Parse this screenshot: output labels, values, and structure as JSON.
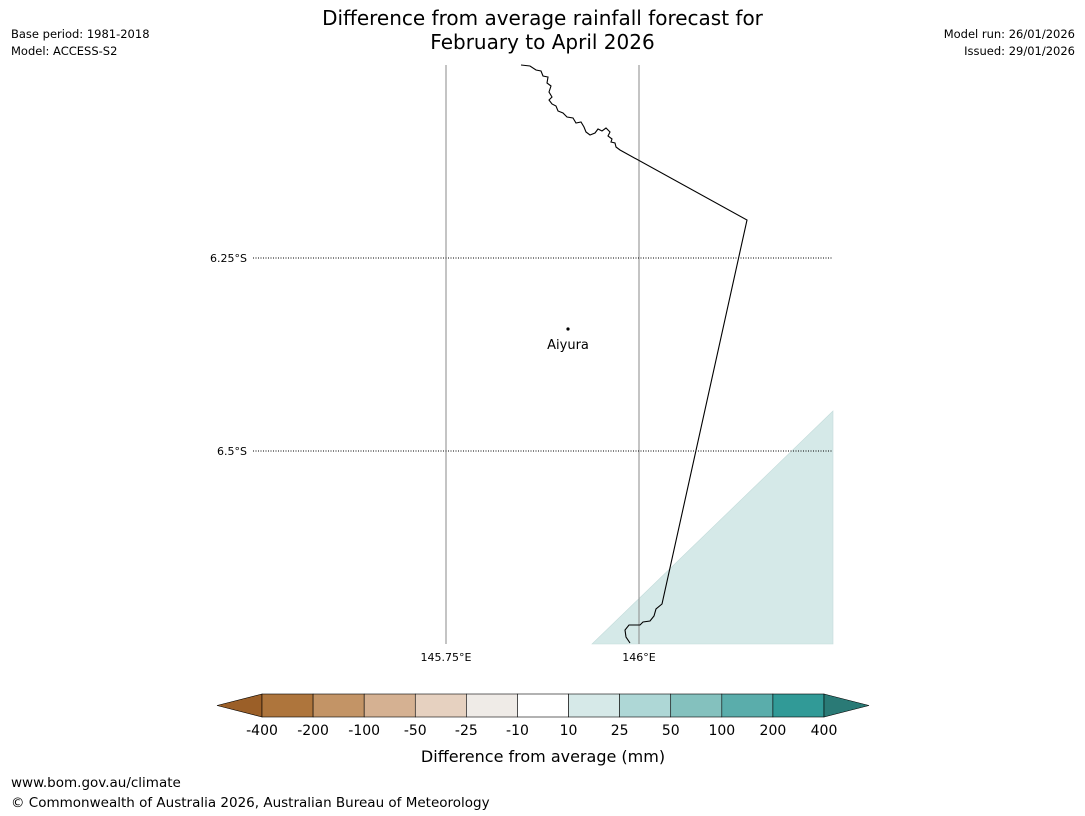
{
  "header": {
    "title_line1": "Difference from average rainfall forecast for",
    "title_line2": "February to April 2026",
    "base_period": "Base period: 1981-2018",
    "model": "Model: ACCESS-S2",
    "model_run": "Model run: 26/01/2026",
    "issued": "Issued: 29/01/2026"
  },
  "map": {
    "lat_labels": [
      "6.25°S",
      "6.5°S"
    ],
    "lon_labels": [
      "145.75°E",
      "146°E"
    ],
    "place": {
      "name": "Aiyura",
      "lon": 145.9,
      "lat": -6.34
    },
    "shaded_colors": {
      "10_to_25": "#d5e9e8"
    },
    "coastline_color": "#000000"
  },
  "legend": {
    "title": "Difference from average (mm)",
    "tick_labels": [
      "-400",
      "-200",
      "-100",
      "-50",
      "-25",
      "-10",
      "10",
      "25",
      "50",
      "100",
      "200",
      "400"
    ],
    "colors": [
      "#9b5f28",
      "#ae753c",
      "#c39466",
      "#d5b192",
      "#e6d1c0",
      "#efebe7",
      "#ffffff",
      "#d6e9e8",
      "#aed7d6",
      "#84c1be",
      "#5aadab",
      "#319a97",
      "#2a7a76"
    ]
  },
  "footer": {
    "url": "www.bom.gov.au/climate",
    "copyright": "© Commonwealth of Australia 2026, Australian Bureau of Meteorology"
  }
}
